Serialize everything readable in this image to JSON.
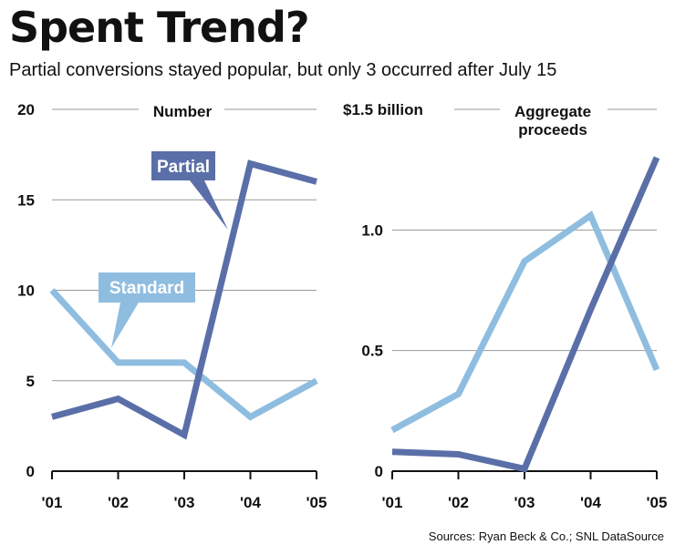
{
  "header": {
    "title": "Spent Trend?",
    "subtitle": "Partial conversions stayed popular, but only 3 occurred after July 15"
  },
  "footer": {
    "source": "Sources: Ryan Beck & Co.; SNL DataSource"
  },
  "colors": {
    "partial": "#5a6fa8",
    "standard": "#8fbde0",
    "grid": "#9a9a9a",
    "axis": "#111111"
  },
  "chart_data": [
    {
      "type": "line",
      "title": "Number",
      "x": [
        "'01",
        "'02",
        "'03",
        "'04",
        "'05"
      ],
      "ylim": [
        0,
        20
      ],
      "yticks": [
        "0",
        "5",
        "10",
        "15",
        "20"
      ],
      "ytick_values": [
        0,
        5,
        10,
        15,
        20
      ],
      "grid": true,
      "series": [
        {
          "name": "Partial",
          "values": [
            3,
            4,
            2,
            17,
            16
          ]
        },
        {
          "name": "Standard",
          "values": [
            10,
            6,
            6,
            3,
            5
          ]
        }
      ]
    },
    {
      "type": "line",
      "title": "Aggregate proceeds",
      "title_lines": [
        "Aggregate",
        "proceeds"
      ],
      "ylabel": "$1.5 billion",
      "x": [
        "'01",
        "'02",
        "'03",
        "'04",
        "'05"
      ],
      "ylim": [
        0,
        1.5
      ],
      "yticks": [
        "0",
        "0.5",
        "1.0",
        "$1.5 billion"
      ],
      "ytick_values": [
        0,
        0.5,
        1.0,
        1.5
      ],
      "grid": true,
      "series": [
        {
          "name": "Partial",
          "values": [
            0.08,
            0.07,
            0.01,
            0.67,
            1.3
          ]
        },
        {
          "name": "Standard",
          "values": [
            0.17,
            0.32,
            0.87,
            1.06,
            0.42
          ]
        }
      ]
    }
  ]
}
